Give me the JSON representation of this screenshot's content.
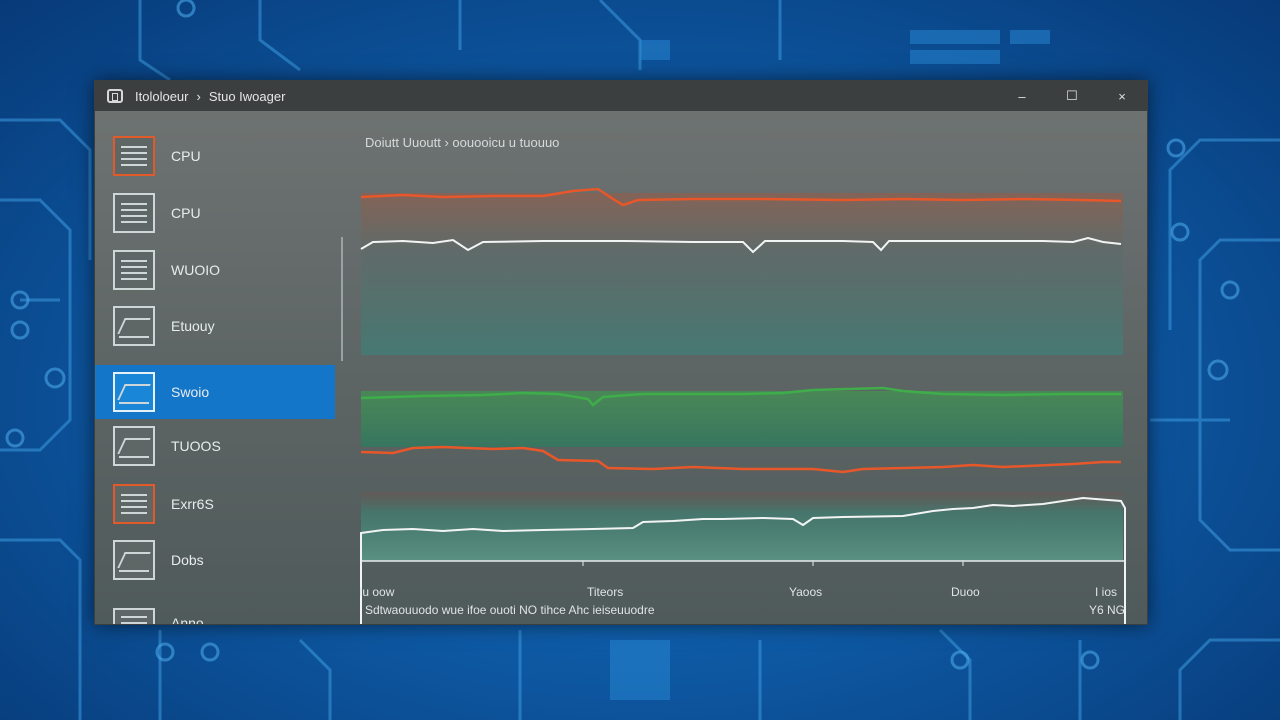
{
  "window": {
    "title_part1": "Itololoeur",
    "title_separator": "›",
    "title_part2": "Stuo Iwoager",
    "minimize_glyph": "–",
    "maximize_glyph": "☐",
    "close_glyph": "×"
  },
  "sidebar": {
    "items": [
      {
        "label": "CPU",
        "icon": "cpu-icon"
      },
      {
        "label": "CPU",
        "icon": "cpu-icon"
      },
      {
        "label": "WUOIO",
        "icon": "list-icon"
      },
      {
        "label": "Etuouy",
        "icon": "chart-icon"
      },
      {
        "label": "Swoio",
        "icon": "disk-icon",
        "selected": true
      },
      {
        "label": "TUOOS",
        "icon": "graph-icon"
      },
      {
        "label": "Exrr6S",
        "icon": "gpu-icon"
      },
      {
        "label": "Dobs",
        "icon": "graph-icon"
      },
      {
        "label": "Anno",
        "icon": "storage-icon"
      }
    ]
  },
  "main": {
    "heading": "Doiutt Uuoutt  ›  oouooicu u tuouuo",
    "axis_labels": [
      "Iu oow",
      "Titeors",
      "Yaoos",
      "Duoo",
      "I ios"
    ],
    "footer_left": "Sdtwaouuodo  wue  ifoe    ouoti  NO tihce    Ahc  ieiseuuodre",
    "footer_right": "Y6 NG"
  },
  "colors": {
    "accent_blue": "#1476c8",
    "series_orange": "#e8572a",
    "series_white": "#f2f4f4",
    "series_green": "#3fae4a",
    "series_teal_fill": "#3f8f7d"
  }
}
